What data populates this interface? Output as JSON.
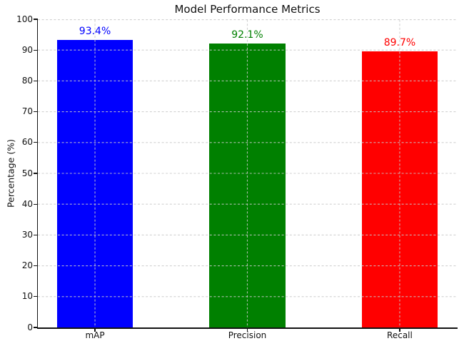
{
  "chart_data": {
    "type": "bar",
    "title": "Model Performance Metrics",
    "xlabel": "",
    "ylabel": "Percentage (%)",
    "categories": [
      "mAP",
      "Precision",
      "Recall"
    ],
    "values": [
      93.4,
      92.1,
      89.7
    ],
    "value_labels": [
      "93.4%",
      "92.1%",
      "89.7%"
    ],
    "bar_colors": [
      "#0000ff",
      "#008000",
      "#ff0000"
    ],
    "ylim": [
      0,
      100
    ],
    "yticks": [
      0,
      10,
      20,
      30,
      40,
      50,
      60,
      70,
      80,
      90,
      100
    ],
    "grid": {
      "visible": true,
      "linestyle": "dashed",
      "color": "#c9c9c9",
      "drawn_over_bars": true
    },
    "legend": "none",
    "spine_color": "#111111"
  }
}
